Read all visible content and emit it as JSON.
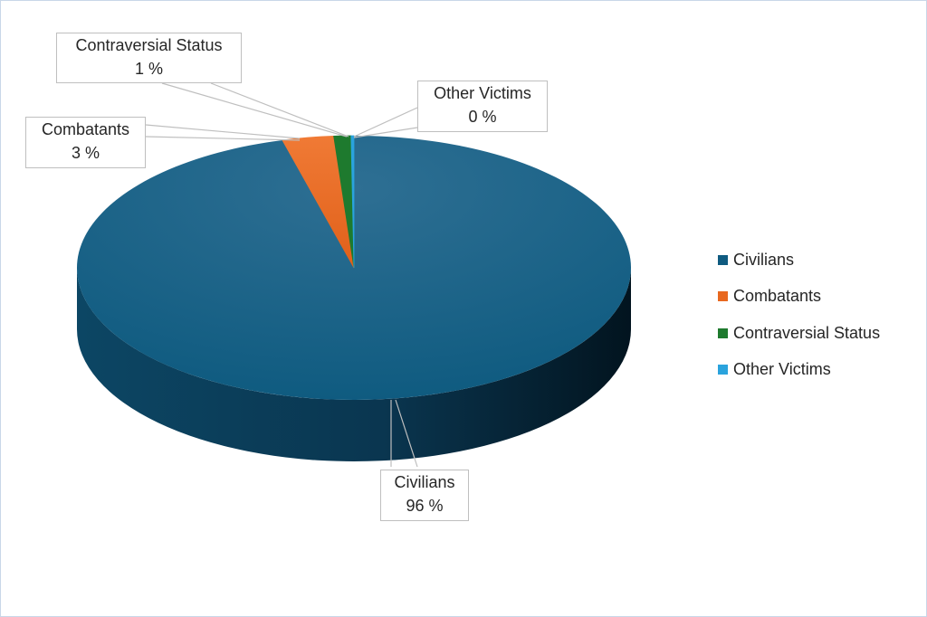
{
  "chart_data": {
    "type": "pie",
    "categories": [
      "Civilians",
      "Combatants",
      "Contraversial Status",
      "Other Victims"
    ],
    "values": [
      96,
      3,
      1,
      0
    ],
    "colors": [
      "#0f5b80",
      "#e8681f",
      "#1e7a2e",
      "#2aa3dd"
    ],
    "data_labels": [
      {
        "name": "Civilians",
        "value": "96 %"
      },
      {
        "name": "Combatants",
        "value": "3 %"
      },
      {
        "name": "Contraversial Status",
        "value": "1 %"
      },
      {
        "name": "Other Victims",
        "value": "0 %"
      }
    ],
    "legend_position": "right",
    "style": "3d"
  },
  "legend": {
    "items": [
      {
        "label": "Civilians",
        "color": "#0f5b80"
      },
      {
        "label": "Combatants",
        "color": "#e8681f"
      },
      {
        "label": "Contraversial Status",
        "color": "#1e7a2e"
      },
      {
        "label": "Other Victims",
        "color": "#2aa3dd"
      }
    ]
  }
}
